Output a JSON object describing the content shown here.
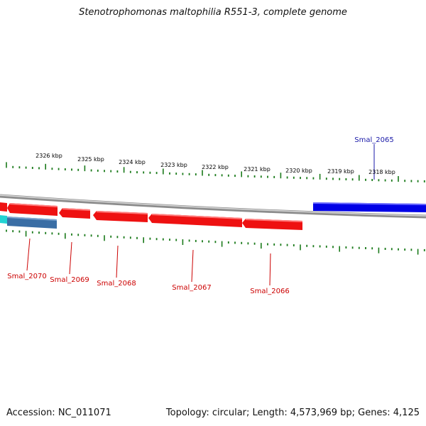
{
  "title": "Stenotrophomonas maltophilia R551-3, complete genome",
  "footer": {
    "accession": "Accession: NC_011071",
    "summary": "Topology: circular; Length: 4,573,969 bp; Genes: 4,125"
  },
  "colors": {
    "tick": "#1a7a1a",
    "backbone": "#8c8c8c",
    "forward_gene": "#0000e6",
    "reverse_gene": "#ee1111",
    "other_gene_teal": "#3a6ea5",
    "other_gene_cyan": "#22d3d3",
    "label_red": "#cc0000",
    "label_blue": "#1a1aa8"
  },
  "kbp_labels": [
    "2326 kbp",
    "2325 kbp",
    "2324 kbp",
    "2323 kbp",
    "2322 kbp",
    "2321 kbp",
    "2320 kbp",
    "2319 kbp",
    "2318 kbp"
  ],
  "genes": {
    "top": [
      {
        "name": "Smal_2065",
        "strand": "forward",
        "color": "blue"
      }
    ],
    "bottom": [
      {
        "name": "Smal_2070",
        "strand": "reverse"
      },
      {
        "name": "Smal_2069",
        "strand": "reverse"
      },
      {
        "name": "Smal_2068",
        "strand": "reverse"
      },
      {
        "name": "Smal_2067",
        "strand": "reverse"
      },
      {
        "name": "Smal_2066",
        "strand": "reverse"
      }
    ]
  }
}
